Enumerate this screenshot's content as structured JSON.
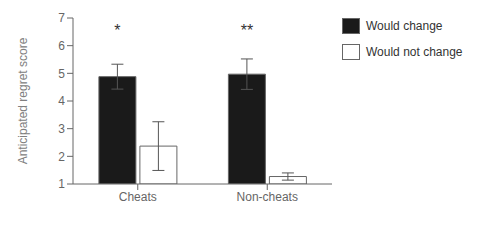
{
  "chart_data": {
    "type": "bar",
    "categories": [
      "Cheats",
      "Non-cheats"
    ],
    "series": [
      {
        "name": "Would change",
        "color": "#1a1a1a",
        "values": [
          4.88,
          4.97
        ],
        "errors": [
          0.45,
          0.55
        ]
      },
      {
        "name": "Would not change",
        "color": "#ffffff",
        "values": [
          2.37,
          1.27
        ],
        "errors": [
          0.88,
          0.13
        ]
      }
    ],
    "ylabel": "Anticipated regret score",
    "ylim": [
      1,
      7
    ],
    "yticks": [
      1,
      2,
      3,
      4,
      5,
      6,
      7
    ],
    "grid": false,
    "legend": "right",
    "annotations": [
      {
        "text": "*",
        "category": "Cheats",
        "series": "Would change",
        "y": 6.75
      },
      {
        "text": "**",
        "category": "Non-cheats",
        "series": "Would change",
        "y": 6.75
      }
    ]
  }
}
